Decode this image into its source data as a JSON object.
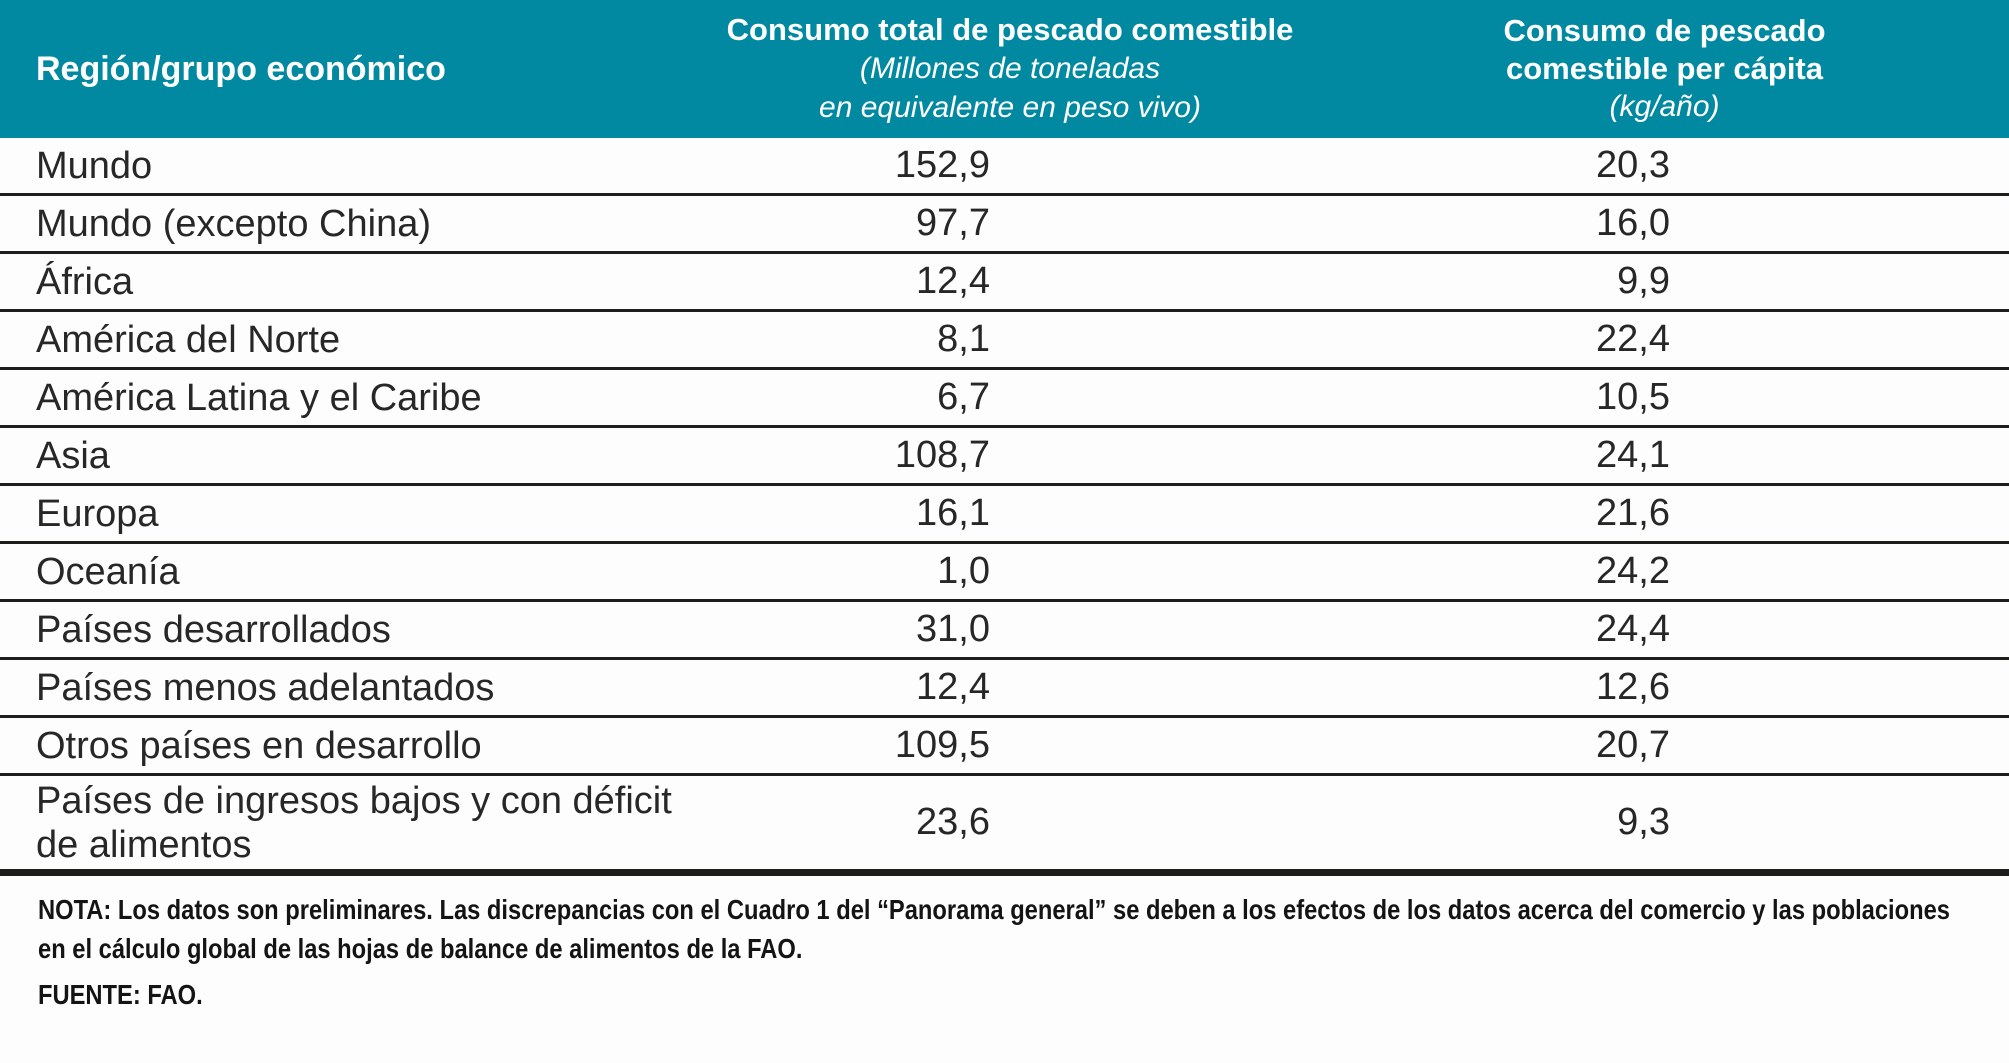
{
  "table": {
    "header": {
      "col1": "Región/grupo económico",
      "col2_title": "Consumo total de pescado comestible",
      "col2_subtitle_line1": "(Millones de toneladas",
      "col2_subtitle_line2": "en equivalente en peso vivo)",
      "col3_title_line1": "Consumo de pescado",
      "col3_title_line2": "comestible per cápita",
      "col3_subtitle": "(kg/año)"
    },
    "rows": [
      {
        "region": "Mundo",
        "total": "152,9",
        "per_capita": "20,3"
      },
      {
        "region": "Mundo (excepto China)",
        "total": "97,7",
        "per_capita": "16,0"
      },
      {
        "region": "África",
        "total": "12,4",
        "per_capita": "9,9"
      },
      {
        "region": "América del Norte",
        "total": "8,1",
        "per_capita": "22,4"
      },
      {
        "region": "América Latina y el Caribe",
        "total": "6,7",
        "per_capita": "10,5"
      },
      {
        "region": "Asia",
        "total": "108,7",
        "per_capita": "24,1"
      },
      {
        "region": "Europa",
        "total": "16,1",
        "per_capita": "21,6"
      },
      {
        "region": "Oceanía",
        "total": "1,0",
        "per_capita": "24,2"
      },
      {
        "region": "Países desarrollados",
        "total": "31,0",
        "per_capita": "24,4"
      },
      {
        "region": "Países menos adelantados",
        "total": "12,4",
        "per_capita": "12,6"
      },
      {
        "region": "Otros países en desarrollo",
        "total": "109,5",
        "per_capita": "20,7"
      },
      {
        "region": "Países de ingresos bajos y con déficit de alimentos",
        "total": "23,6",
        "per_capita": "9,3"
      }
    ]
  },
  "footer": {
    "note": "NOTA: Los datos son preliminares. Las discrepancias con el Cuadro 1 del “Panorama general” se deben a los efectos de los datos acerca del comercio y las poblaciones en el cálculo global de las hojas de balance de alimentos de la FAO.",
    "source": "FUENTE: FAO."
  },
  "colors": {
    "header_bg": "#0089A0",
    "header_text": "#FFFFFF",
    "body_text": "#272727",
    "rule": "#1D1D1B"
  },
  "chart_data": {
    "type": "table",
    "title": "",
    "columns": [
      "Región/grupo económico",
      "Consumo total de pescado comestible (Millones de toneladas en equivalente en peso vivo)",
      "Consumo de pescado comestible per cápita (kg/año)"
    ],
    "rows": [
      [
        "Mundo",
        152.9,
        20.3
      ],
      [
        "Mundo (excepto China)",
        97.7,
        16.0
      ],
      [
        "África",
        12.4,
        9.9
      ],
      [
        "América del Norte",
        8.1,
        22.4
      ],
      [
        "América Latina y el Caribe",
        6.7,
        10.5
      ],
      [
        "Asia",
        108.7,
        24.1
      ],
      [
        "Europa",
        16.1,
        21.6
      ],
      [
        "Oceanía",
        1.0,
        24.2
      ],
      [
        "Países desarrollados",
        31.0,
        24.4
      ],
      [
        "Países menos adelantados",
        12.4,
        12.6
      ],
      [
        "Otros países en desarrollo",
        109.5,
        20.7
      ],
      [
        "Países de ingresos bajos y con déficit de alimentos",
        23.6,
        9.3
      ]
    ],
    "note": "NOTA: Los datos son preliminares. Las discrepancias con el Cuadro 1 del “Panorama general” se deben a los efectos de los datos acerca del comercio y las poblaciones en el cálculo global de las hojas de balance de alimentos de la FAO.",
    "source": "FUENTE: FAO."
  }
}
